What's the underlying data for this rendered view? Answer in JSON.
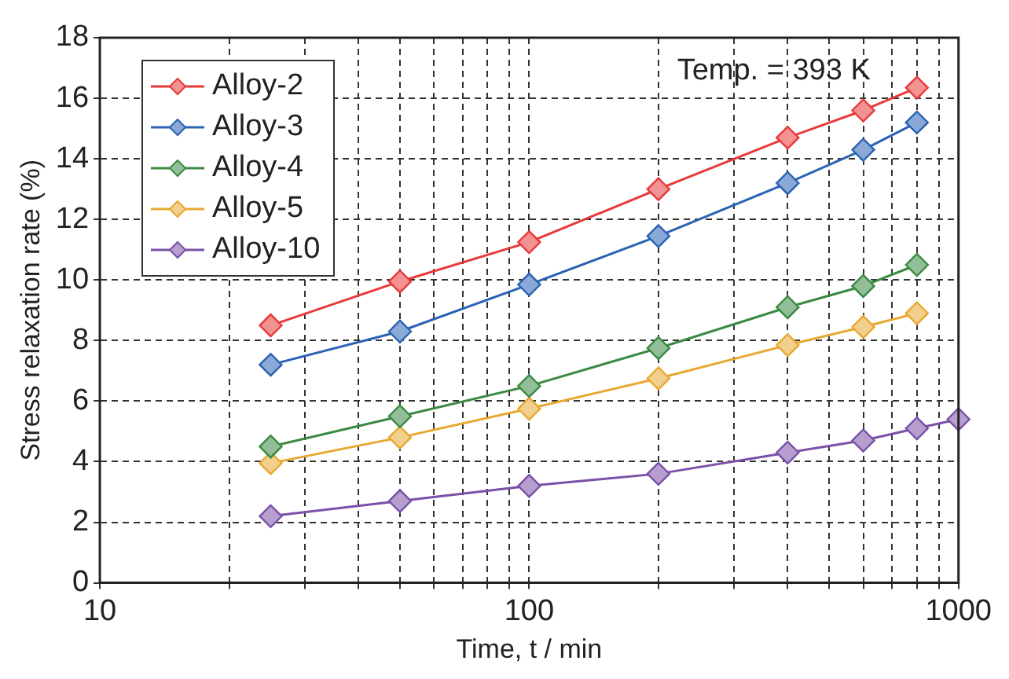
{
  "chart_data": {
    "type": "line",
    "xlabel": "Time, t / min",
    "ylabel": "Stress relaxation rate (%)",
    "annotations": [
      "Temp. = 393 K"
    ],
    "x": [
      25,
      50,
      100,
      200,
      400,
      600,
      800
    ],
    "series": [
      {
        "name": "Alloy-2",
        "color": "#e8393a",
        "values": [
          8.5,
          9.95,
          11.25,
          13.0,
          14.7,
          15.6,
          16.35
        ]
      },
      {
        "name": "Alloy-3",
        "color": "#2a62b4",
        "values": [
          7.2,
          8.3,
          9.85,
          11.45,
          13.2,
          14.3,
          15.2
        ]
      },
      {
        "name": "Alloy-4",
        "color": "#3a8a44",
        "values": [
          4.5,
          5.5,
          6.5,
          7.75,
          9.1,
          9.8,
          10.5
        ]
      },
      {
        "name": "Alloy-5",
        "color": "#e8a830",
        "values": [
          3.95,
          4.8,
          5.75,
          6.75,
          7.85,
          8.45,
          8.9
        ]
      },
      {
        "name": "Alloy-10",
        "color": "#7a50a8",
        "x": [
          25,
          50,
          100,
          200,
          400,
          600,
          800,
          1000
        ],
        "values": [
          2.2,
          2.7,
          3.2,
          3.6,
          4.3,
          4.7,
          5.1,
          5.4
        ]
      }
    ],
    "log": "x",
    "xlim": [
      10,
      1000
    ],
    "xticks": [
      10,
      {
        "value": 20,
        "label": null
      },
      {
        "value": 30,
        "label": null
      },
      {
        "value": 40,
        "label": null
      },
      {
        "value": 50,
        "label": null
      },
      {
        "value": 60,
        "label": null
      },
      {
        "value": 70,
        "label": null
      },
      {
        "value": 80,
        "label": null
      },
      {
        "value": 90,
        "label": null
      },
      100,
      {
        "value": 200,
        "label": null
      },
      {
        "value": 300,
        "label": null
      },
      {
        "value": 400,
        "label": null
      },
      {
        "value": 500,
        "label": null
      },
      {
        "value": 600,
        "label": null
      },
      {
        "value": 700,
        "label": null
      },
      {
        "value": 800,
        "label": null
      },
      {
        "value": 900,
        "label": null
      },
      1000
    ],
    "ylim": [
      0,
      18
    ],
    "yticks": [
      0,
      2,
      4,
      6,
      8,
      10,
      12,
      14,
      16,
      18
    ],
    "grid": true,
    "legend": "top left",
    "marker": "diamond",
    "line_style": "solid"
  }
}
